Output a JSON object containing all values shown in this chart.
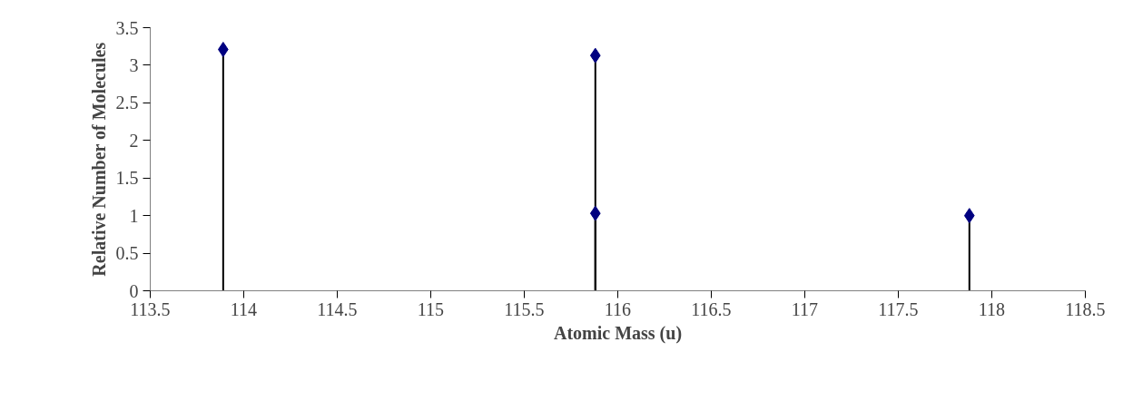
{
  "chart_data": {
    "type": "lollipop",
    "xlabel": "Atomic Mass (u)",
    "ylabel": "Relative Number of Molecules",
    "x": [
      113.89,
      115.88,
      115.88,
      117.88
    ],
    "series": [
      {
        "color": "#000080",
        "values": [
          3.21,
          3.13,
          1.03,
          1.0
        ]
      }
    ],
    "xlim": [
      113.5,
      118.5
    ],
    "xticks": [
      113.5,
      114,
      114.5,
      115,
      115.5,
      116,
      116.5,
      117,
      117.5,
      118,
      118.5
    ],
    "ylim": [
      0,
      3.5
    ],
    "yticks": [
      0,
      0.5,
      1,
      1.5,
      2,
      2.5,
      3,
      3.5
    ],
    "grid": false,
    "marker": "diamond"
  }
}
